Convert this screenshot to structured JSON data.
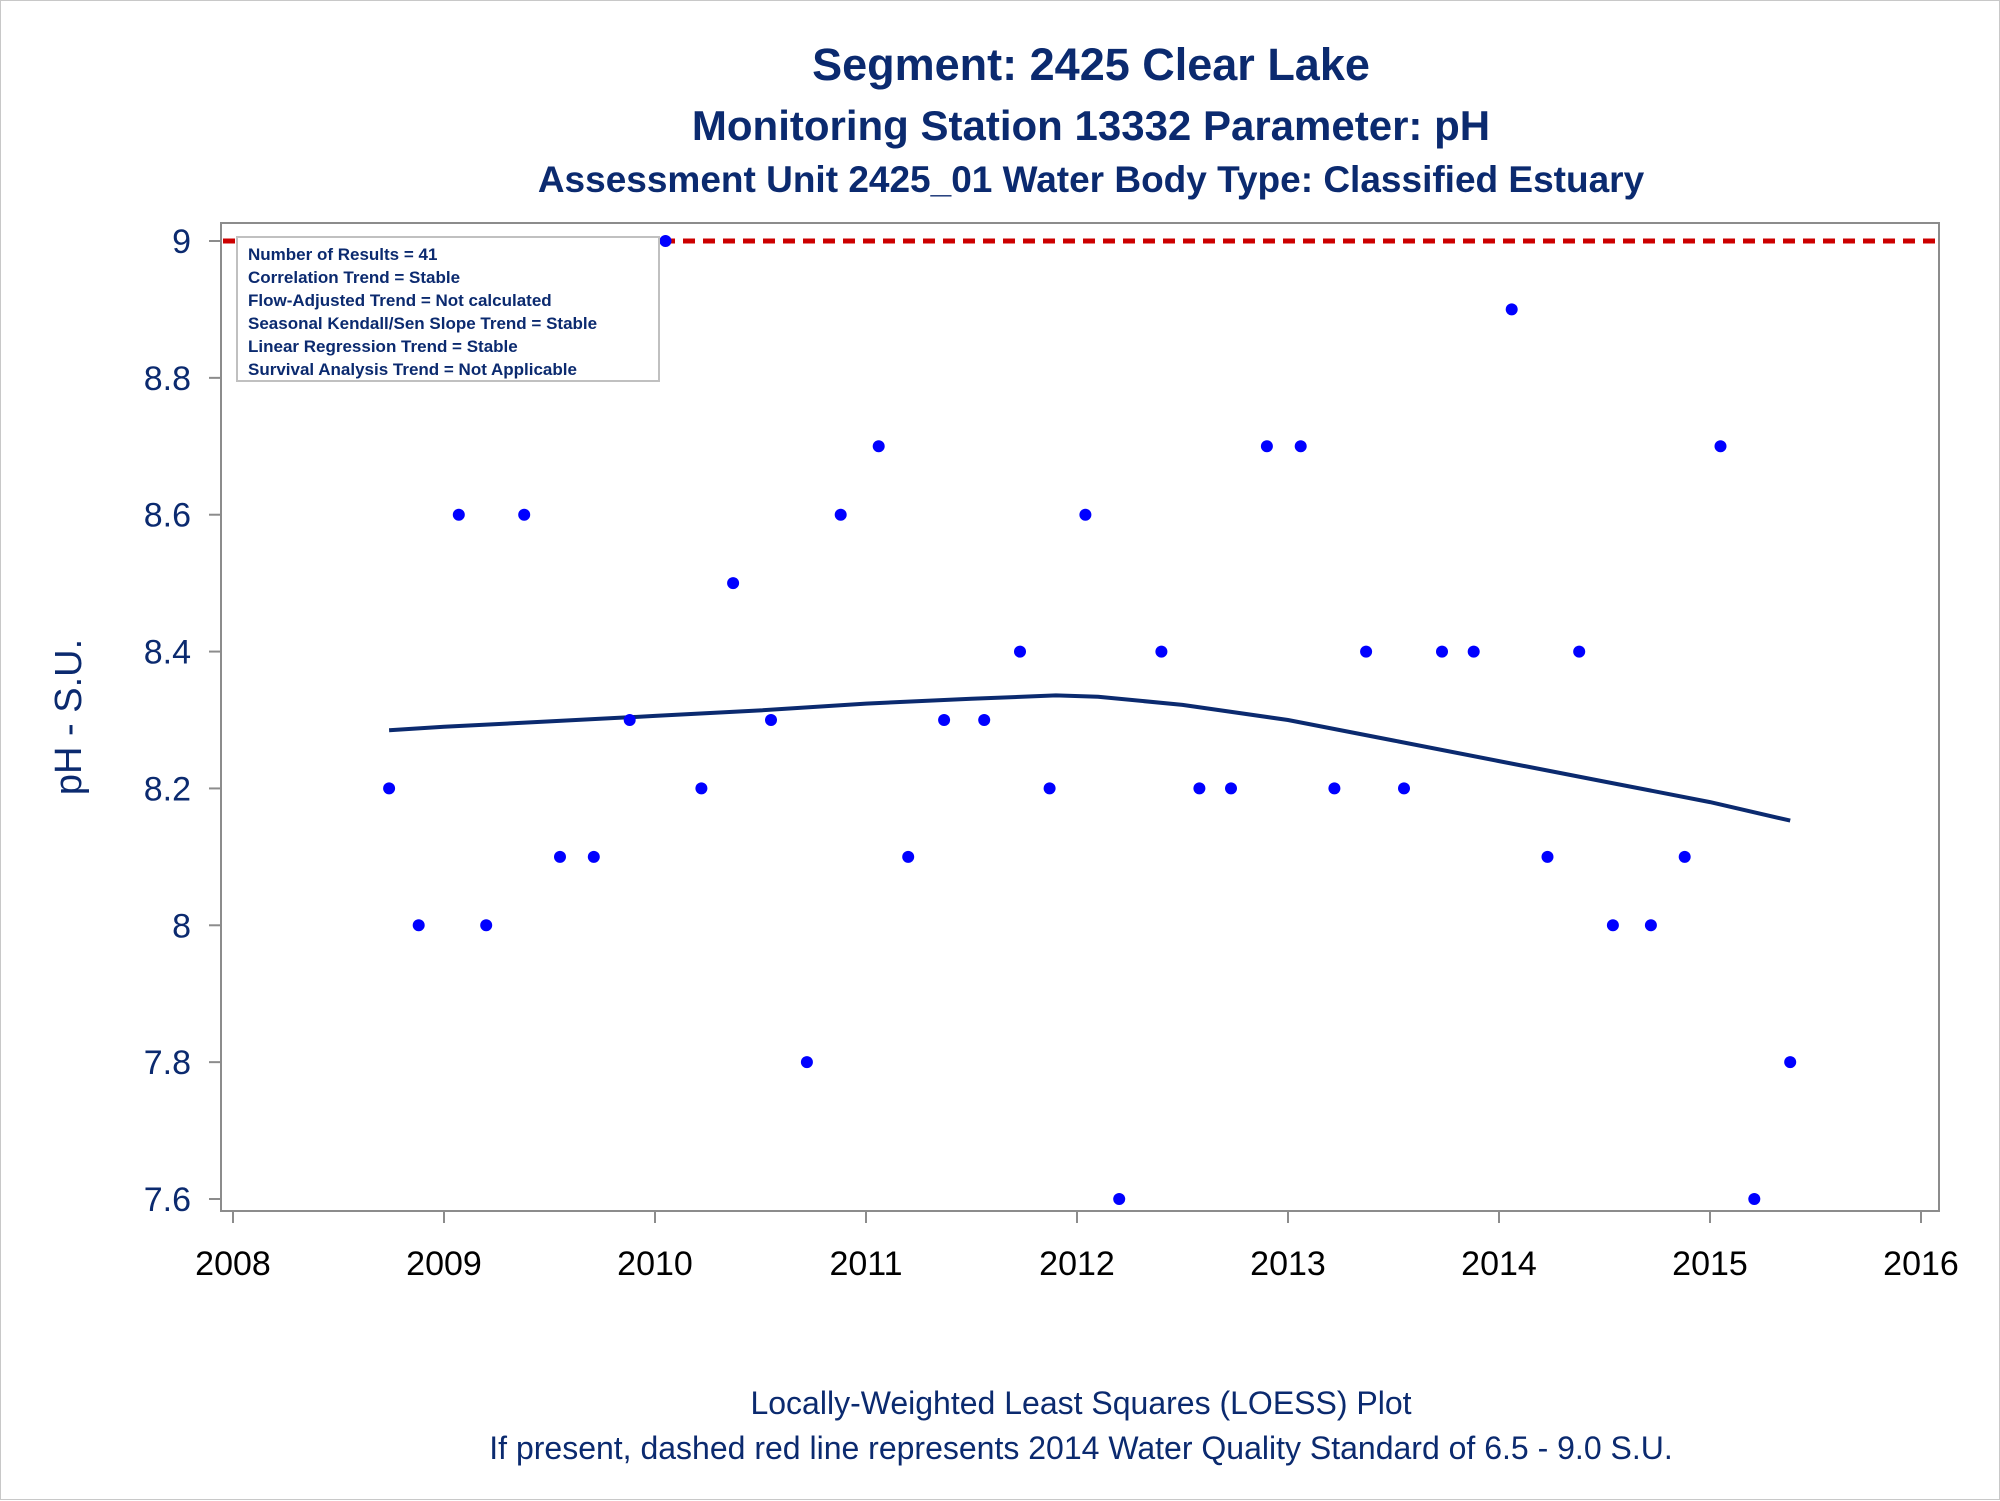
{
  "chart_data": {
    "type": "scatter",
    "title": "Segment: 2425  Clear Lake",
    "subtitle": "Monitoring Station 13332 Parameter: pH",
    "subtitle2": "Assessment Unit 2425_01   Water Body Type: Classified Estuary",
    "ylabel": "pH - S.U.",
    "xlim": [
      2008,
      2016
    ],
    "ylim": [
      7.6,
      9.0
    ],
    "x_ticks": [
      "2008",
      "2009",
      "2010",
      "2011",
      "2012",
      "2013",
      "2014",
      "2015",
      "2016"
    ],
    "y_ticks": [
      "7.6",
      "7.8",
      "8",
      "8.2",
      "8.4",
      "8.6",
      "8.8",
      "9"
    ],
    "footnotes": [
      "Locally-Weighted Least Squares (LOESS) Plot",
      "If present, dashed red line represents 2014 Water Quality Standard of 6.5 - 9.0 S.U."
    ],
    "info_box": [
      "Number of Results = 41",
      "Correlation Trend = Stable",
      "Flow-Adjusted Trend = Not calculated",
      "Seasonal Kendall/Sen Slope Trend = Stable",
      "Linear Regression Trend = Stable",
      "Survival Analysis Trend = Not Applicable"
    ],
    "reference_line": {
      "y": 9.0,
      "style": "dashed",
      "color": "#cc0000"
    },
    "colors": {
      "points": "#0000ff",
      "loess": "#0b2a6f",
      "text": "#0b2a6f"
    },
    "points": [
      {
        "x": 2008.74,
        "y": 8.2
      },
      {
        "x": 2008.88,
        "y": 8.0
      },
      {
        "x": 2009.07,
        "y": 8.6
      },
      {
        "x": 2009.2,
        "y": 8.0
      },
      {
        "x": 2009.38,
        "y": 8.6
      },
      {
        "x": 2009.55,
        "y": 8.1
      },
      {
        "x": 2009.71,
        "y": 8.1
      },
      {
        "x": 2009.88,
        "y": 8.3
      },
      {
        "x": 2010.05,
        "y": 9.0
      },
      {
        "x": 2010.22,
        "y": 8.2
      },
      {
        "x": 2010.37,
        "y": 8.5
      },
      {
        "x": 2010.55,
        "y": 8.3
      },
      {
        "x": 2010.72,
        "y": 7.8
      },
      {
        "x": 2010.88,
        "y": 8.6
      },
      {
        "x": 2011.06,
        "y": 8.7
      },
      {
        "x": 2011.2,
        "y": 8.1
      },
      {
        "x": 2011.37,
        "y": 8.3
      },
      {
        "x": 2011.56,
        "y": 8.3
      },
      {
        "x": 2011.73,
        "y": 8.4
      },
      {
        "x": 2011.87,
        "y": 8.2
      },
      {
        "x": 2012.04,
        "y": 8.6
      },
      {
        "x": 2012.2,
        "y": 7.6
      },
      {
        "x": 2012.4,
        "y": 8.4
      },
      {
        "x": 2012.58,
        "y": 8.2
      },
      {
        "x": 2012.73,
        "y": 8.2
      },
      {
        "x": 2012.9,
        "y": 8.7
      },
      {
        "x": 2013.06,
        "y": 8.7
      },
      {
        "x": 2013.22,
        "y": 8.2
      },
      {
        "x": 2013.37,
        "y": 8.4
      },
      {
        "x": 2013.55,
        "y": 8.2
      },
      {
        "x": 2013.73,
        "y": 8.4
      },
      {
        "x": 2013.88,
        "y": 8.4
      },
      {
        "x": 2014.06,
        "y": 8.9
      },
      {
        "x": 2014.23,
        "y": 8.1
      },
      {
        "x": 2014.38,
        "y": 8.4
      },
      {
        "x": 2014.54,
        "y": 8.0
      },
      {
        "x": 2014.72,
        "y": 8.0
      },
      {
        "x": 2014.88,
        "y": 8.1
      },
      {
        "x": 2015.05,
        "y": 8.7
      },
      {
        "x": 2015.21,
        "y": 7.6
      },
      {
        "x": 2015.38,
        "y": 7.8
      }
    ],
    "loess": [
      {
        "x": 2008.74,
        "y": 8.285
      },
      {
        "x": 2009.0,
        "y": 8.29
      },
      {
        "x": 2009.5,
        "y": 8.298
      },
      {
        "x": 2010.0,
        "y": 8.306
      },
      {
        "x": 2010.5,
        "y": 8.314
      },
      {
        "x": 2011.0,
        "y": 8.324
      },
      {
        "x": 2011.5,
        "y": 8.331
      },
      {
        "x": 2011.9,
        "y": 8.336
      },
      {
        "x": 2012.1,
        "y": 8.334
      },
      {
        "x": 2012.5,
        "y": 8.322
      },
      {
        "x": 2013.0,
        "y": 8.3
      },
      {
        "x": 2013.5,
        "y": 8.27
      },
      {
        "x": 2014.0,
        "y": 8.24
      },
      {
        "x": 2014.5,
        "y": 8.21
      },
      {
        "x": 2015.0,
        "y": 8.18
      },
      {
        "x": 2015.38,
        "y": 8.153
      }
    ]
  }
}
